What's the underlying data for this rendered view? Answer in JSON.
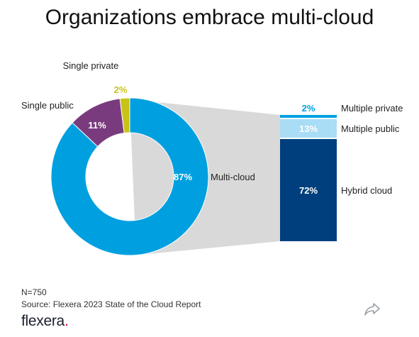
{
  "title": "Organizations embrace multi-cloud",
  "chart_data": {
    "type": "donut-with-stacked-bar",
    "donut": {
      "slices": [
        {
          "label": "Multi-cloud",
          "value": 87,
          "value_label": "87%",
          "color": "#00a0e0"
        },
        {
          "label": "Single public",
          "value": 11,
          "value_label": "11%",
          "color": "#7a3b7e"
        },
        {
          "label": "Single private",
          "value": 2,
          "value_label": "2%",
          "color": "#c8c316"
        }
      ]
    },
    "breakdown_of": "Multi-cloud",
    "bar": {
      "segments": [
        {
          "label": "Multiple private",
          "value": 2,
          "value_label": "2%",
          "color": "#00a0e0"
        },
        {
          "label": "Multiple public",
          "value": 13,
          "value_label": "13%",
          "color": "#a8ddf5"
        },
        {
          "label": "Hybrid cloud",
          "value": 72,
          "value_label": "72%",
          "color": "#003f7d"
        }
      ]
    }
  },
  "footer": {
    "n": "N=750",
    "source": "Source: Flexera 2023 State of the Cloud Report"
  },
  "brand": {
    "name": "flexera",
    "dot": "."
  },
  "icons": {
    "share": "share-icon"
  }
}
